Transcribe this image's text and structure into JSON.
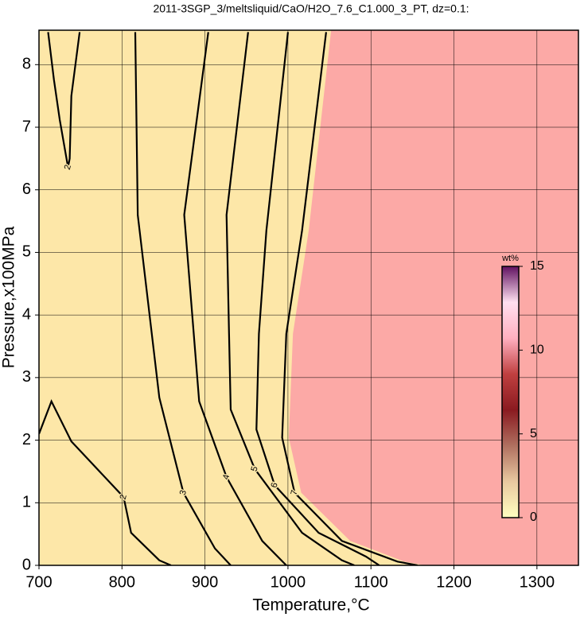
{
  "chart_data": {
    "type": "contour",
    "title": "2011-3SGP_3/meltsliquid/CaO/H2O_7.6_C1.000_3_PT, dz=0.1:",
    "xlabel": "Temperature,°C",
    "ylabel": "Pressure,x100MPa",
    "xlim": [
      700,
      1350
    ],
    "ylim": [
      0,
      8.55
    ],
    "xticks": [
      700,
      800,
      900,
      1000,
      1100,
      1200,
      1300
    ],
    "yticks": [
      0,
      1,
      2,
      3,
      4,
      5,
      6,
      7,
      8
    ],
    "grid": true,
    "background_color": "#fde7a8",
    "regions": [
      {
        "color": "#fca9a6",
        "x": [
          1052,
          1025,
          1006,
          1001,
          1016,
          1075,
          1140,
          1165
        ],
        "y": [
          8.55,
          5.35,
          3.7,
          2.04,
          1.16,
          0.39,
          0.06,
          0
        ]
      }
    ],
    "contours": [
      {
        "level": 2,
        "x": [
          711,
          718,
          725,
          735,
          737,
          739,
          749,
          null,
          700,
          715,
          739,
          802,
          811,
          845,
          859
        ],
        "y": [
          8.52,
          7.76,
          7.12,
          6.36,
          6.5,
          7.5,
          8.52,
          null,
          2.1,
          2.62,
          1.98,
          1.09,
          0.52,
          0.08,
          0
        ]
      },
      {
        "level": 3,
        "x": [
          816,
          819,
          845,
          874,
          912,
          931
        ],
        "y": [
          8.52,
          5.6,
          2.68,
          1.16,
          0.27,
          0
        ]
      },
      {
        "level": 4,
        "x": [
          904,
          875,
          893,
          926,
          969,
          998
        ],
        "y": [
          8.52,
          5.6,
          2.62,
          1.41,
          0.39,
          0
        ]
      },
      {
        "level": 5,
        "x": [
          952,
          926,
          929,
          931,
          960,
          1017,
          1065,
          1080
        ],
        "y": [
          8.52,
          5.6,
          3.7,
          2.49,
          1.54,
          0.52,
          0.08,
          0
        ]
      },
      {
        "level": 6,
        "x": [
          1000,
          974,
          965,
          962,
          984,
          1037,
          1094,
          1110
        ],
        "y": [
          8.52,
          5.35,
          3.7,
          2.17,
          1.28,
          0.52,
          0.14,
          0
        ]
      },
      {
        "level": 7,
        "x": [
          1046,
          1017,
          998,
          993,
          1008,
          1065,
          1132,
          1156
        ],
        "y": [
          8.52,
          5.35,
          3.7,
          2.04,
          1.16,
          0.39,
          0.06,
          0
        ]
      }
    ],
    "colorbar": {
      "label": "wt%",
      "lim": [
        0,
        15
      ],
      "ticks": [
        0,
        5,
        10,
        15
      ],
      "colors": [
        "#ffffc0",
        "#e8c8a0",
        "#b07060",
        "#8a1a20",
        "#c04040",
        "#ffb0c0",
        "#ffe0f0",
        "#601060"
      ]
    }
  }
}
